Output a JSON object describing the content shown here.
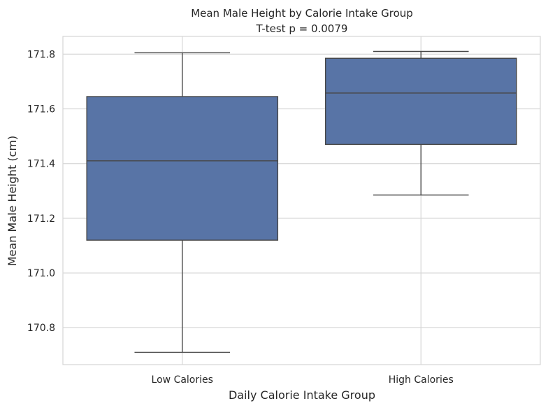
{
  "chart_data": {
    "type": "box",
    "title": "Mean Male Height by Calorie Intake Group",
    "subtitle": "T-test p = 0.0079",
    "xlabel": "Daily Calorie Intake Group",
    "ylabel": "Mean Male Height (cm)",
    "categories": [
      "Low Calories",
      "High Calories"
    ],
    "boxes": [
      {
        "whisker_low": 170.71,
        "q1": 171.12,
        "median": 171.41,
        "q3": 171.645,
        "whisker_high": 171.805
      },
      {
        "whisker_low": 171.285,
        "q1": 171.47,
        "median": 171.658,
        "q3": 171.785,
        "whisker_high": 171.81
      }
    ],
    "ylim": [
      170.665,
      171.865
    ],
    "yticks": [
      170.8,
      171.0,
      171.2,
      171.4,
      171.6,
      171.8
    ],
    "ytick_labels": [
      "170.8",
      "171.0",
      "171.2",
      "171.4",
      "171.6",
      "171.8"
    ],
    "grid": true,
    "colors": {
      "box_fill": "#5874a6",
      "box_edge": "#474747",
      "grid": "#d6d6d6",
      "background": "#ffffff"
    }
  }
}
